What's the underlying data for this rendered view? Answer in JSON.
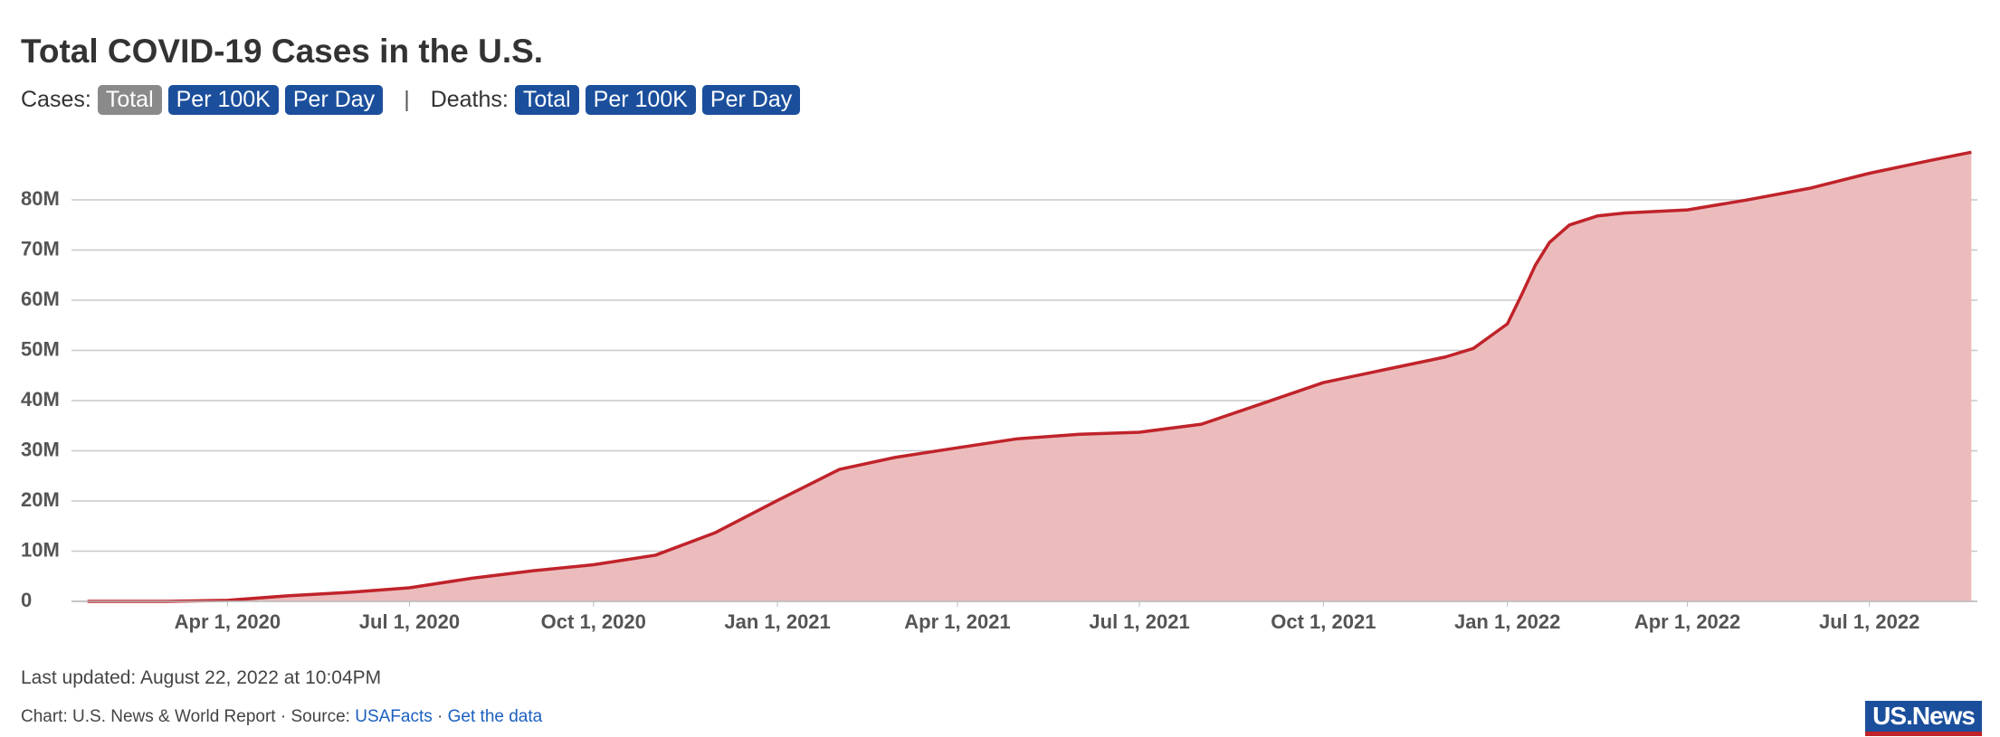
{
  "chart_data": {
    "type": "area",
    "title": "Total COVID-19 Cases in the U.S.",
    "color": "#c0232a",
    "fill": "#ecbcbd",
    "x": [
      "2020-01-22",
      "2020-03-01",
      "2020-04-01",
      "2020-05-01",
      "2020-06-01",
      "2020-07-01",
      "2020-08-01",
      "2020-09-01",
      "2020-10-01",
      "2020-11-01",
      "2020-12-01",
      "2021-01-01",
      "2021-02-01",
      "2021-03-01",
      "2021-04-01",
      "2021-05-01",
      "2021-06-01",
      "2021-07-01",
      "2021-08-01",
      "2021-09-01",
      "2021-10-01",
      "2021-11-01",
      "2021-12-01",
      "2021-12-15",
      "2022-01-01",
      "2022-01-08",
      "2022-01-15",
      "2022-01-22",
      "2022-02-01",
      "2022-02-15",
      "2022-03-01",
      "2022-04-01",
      "2022-05-01",
      "2022-06-01",
      "2022-07-01",
      "2022-08-01",
      "2022-08-21"
    ],
    "values": [
      0,
      0,
      200000,
      1100000,
      1800000,
      2700000,
      4600000,
      6100000,
      7300000,
      9200000,
      13700000,
      20100000,
      26300000,
      28700000,
      30600000,
      32400000,
      33300000,
      33700000,
      35300000,
      39500000,
      43600000,
      46200000,
      48700000,
      50400000,
      55300000,
      61000000,
      67000000,
      71500000,
      75000000,
      76800000,
      77400000,
      78000000,
      80000000,
      82300000,
      85300000,
      87900000,
      89500000
    ],
    "xlim": [
      "2020-01-14",
      "2022-08-24"
    ],
    "xticks": [
      {
        "value": "2020-04-01",
        "label": "Apr 1, 2020"
      },
      {
        "value": "2020-07-01",
        "label": "Jul 1, 2020"
      },
      {
        "value": "2020-10-01",
        "label": "Oct 1, 2020"
      },
      {
        "value": "2021-01-01",
        "label": "Jan 1, 2021"
      },
      {
        "value": "2021-04-01",
        "label": "Apr 1, 2021"
      },
      {
        "value": "2021-07-01",
        "label": "Jul 1, 2021"
      },
      {
        "value": "2021-10-01",
        "label": "Oct 1, 2021"
      },
      {
        "value": "2022-01-01",
        "label": "Jan 1, 2022"
      },
      {
        "value": "2022-04-01",
        "label": "Apr 1, 2022"
      },
      {
        "value": "2022-07-01",
        "label": "Jul 1, 2022"
      }
    ],
    "ylim": [
      0,
      91000000
    ],
    "yticks": [
      0,
      {
        "value": 10000000,
        "label": "10M"
      },
      {
        "value": 20000000,
        "label": "20M"
      },
      {
        "value": 30000000,
        "label": "30M"
      },
      {
        "value": 40000000,
        "label": "40M"
      },
      {
        "value": 50000000,
        "label": "50M"
      },
      {
        "value": 60000000,
        "label": "60M"
      },
      {
        "value": 70000000,
        "label": "70M"
      },
      {
        "value": 80000000,
        "label": "80M"
      }
    ],
    "grid": true
  },
  "controls": {
    "cases_label": "Cases:",
    "cases_buttons": [
      "Total",
      "Per 100K",
      "Per Day"
    ],
    "separator": "|",
    "deaths_label": "Deaths:",
    "deaths_buttons": [
      "Total",
      "Per 100K",
      "Per Day"
    ]
  },
  "footer": {
    "updated": "Last updated: August 22, 2022 at 10:04PM",
    "credit": "Chart: U.S. News & World Report · Source:",
    "source_link": "USAFacts",
    "dot": "·",
    "data_link": "Get the data",
    "logo": "US.News"
  }
}
